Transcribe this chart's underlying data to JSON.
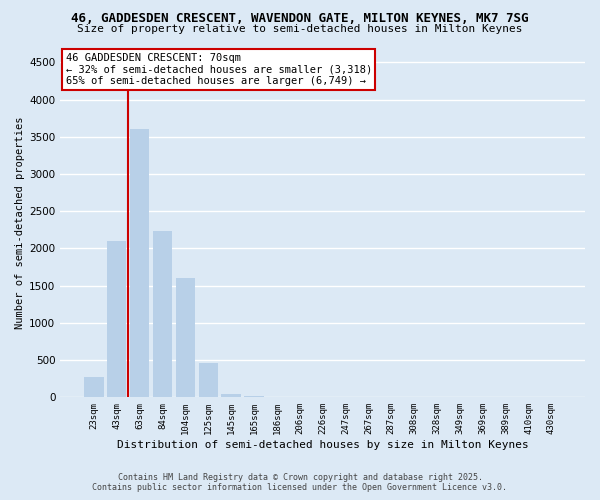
{
  "title_line1": "46, GADDESDEN CRESCENT, WAVENDON GATE, MILTON KEYNES, MK7 7SG",
  "title_line2": "Size of property relative to semi-detached houses in Milton Keynes",
  "xlabel": "Distribution of semi-detached houses by size in Milton Keynes",
  "ylabel": "Number of semi-detached properties",
  "categories": [
    "23sqm",
    "43sqm",
    "63sqm",
    "84sqm",
    "104sqm",
    "125sqm",
    "145sqm",
    "165sqm",
    "186sqm",
    "206sqm",
    "226sqm",
    "247sqm",
    "267sqm",
    "287sqm",
    "308sqm",
    "328sqm",
    "349sqm",
    "369sqm",
    "389sqm",
    "410sqm",
    "430sqm"
  ],
  "values": [
    270,
    2100,
    3610,
    2230,
    1600,
    460,
    50,
    20,
    10,
    0,
    0,
    0,
    0,
    0,
    0,
    0,
    0,
    0,
    0,
    0,
    0
  ],
  "bar_color": "#b8d0e8",
  "vline_bar_index": 2,
  "annotation_title": "46 GADDESDEN CRESCENT: 70sqm",
  "annotation_line1": "← 32% of semi-detached houses are smaller (3,318)",
  "annotation_line2": "65% of semi-detached houses are larger (6,749) →",
  "annotation_box_color": "#ffffff",
  "annotation_box_edge_color": "#cc0000",
  "vline_color": "#cc0000",
  "ylim": [
    0,
    4700
  ],
  "yticks": [
    0,
    500,
    1000,
    1500,
    2000,
    2500,
    3000,
    3500,
    4000,
    4500
  ],
  "background_color": "#dce9f5",
  "grid_color": "#ffffff",
  "footer_line1": "Contains HM Land Registry data © Crown copyright and database right 2025.",
  "footer_line2": "Contains public sector information licensed under the Open Government Licence v3.0."
}
